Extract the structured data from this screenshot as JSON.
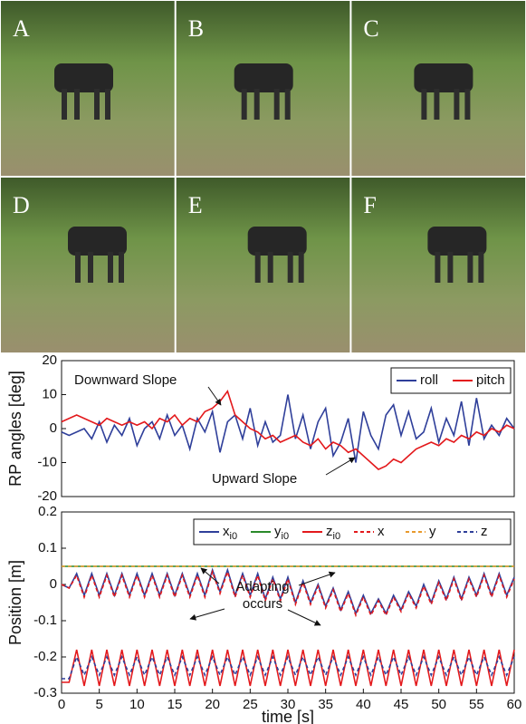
{
  "photos": {
    "labels": [
      "A",
      "B",
      "C",
      "D",
      "E",
      "F"
    ]
  },
  "chart_data": [
    {
      "type": "line",
      "ylabel": "RP angles [deg]",
      "annotations": [
        "Downward Slope",
        "Upward Slope"
      ],
      "x": [
        0,
        1,
        2,
        3,
        4,
        5,
        6,
        7,
        8,
        9,
        10,
        11,
        12,
        13,
        14,
        15,
        16,
        17,
        18,
        19,
        20,
        21,
        22,
        23,
        24,
        25,
        26,
        27,
        28,
        29,
        30,
        31,
        32,
        33,
        34,
        35,
        36,
        37,
        38,
        39,
        40,
        41,
        42,
        43,
        44,
        45,
        46,
        47,
        48,
        49,
        50,
        51,
        52,
        53,
        54,
        55,
        56,
        57,
        58,
        59,
        60
      ],
      "xlim": [
        0,
        60
      ],
      "ylim": [
        -20,
        20
      ],
      "yticks": [
        -20,
        -10,
        0,
        10,
        20
      ],
      "legend": "upper right",
      "series": [
        {
          "name": "roll",
          "color": "#2f3f9a",
          "values": [
            -1,
            -2,
            -1,
            0,
            -3,
            2,
            -4,
            1,
            -2,
            3,
            -5,
            0,
            2,
            -3,
            4,
            -2,
            1,
            -6,
            3,
            -1,
            5,
            -7,
            2,
            4,
            -3,
            6,
            -5,
            2,
            -4,
            -2,
            10,
            -3,
            4,
            -6,
            2,
            6,
            -8,
            -4,
            3,
            -10,
            5,
            -2,
            -6,
            4,
            7,
            -2,
            5,
            -3,
            -1,
            6,
            -4,
            3,
            -2,
            8,
            -5,
            9,
            -3,
            1,
            -2,
            3,
            0
          ]
        },
        {
          "name": "pitch",
          "color": "#e3191c",
          "values": [
            2,
            3,
            4,
            3,
            2,
            1,
            3,
            2,
            1,
            2,
            1,
            2,
            0,
            3,
            2,
            4,
            1,
            3,
            2,
            5,
            6,
            8,
            11,
            4,
            2,
            0,
            -1,
            -3,
            -2,
            -4,
            -3,
            -2,
            -4,
            -5,
            -3,
            -6,
            -4,
            -5,
            -7,
            -6,
            -8,
            -10,
            -12,
            -11,
            -9,
            -10,
            -8,
            -6,
            -5,
            -4,
            -5,
            -3,
            -4,
            -2,
            -3,
            -1,
            -2,
            0,
            -1,
            1,
            0
          ]
        }
      ]
    },
    {
      "type": "line",
      "ylabel": "Position [m]",
      "xlabel": "time [s]",
      "annotations": [
        "Adapting",
        "occurs"
      ],
      "x": [
        0,
        1,
        2,
        3,
        4,
        5,
        6,
        7,
        8,
        9,
        10,
        11,
        12,
        13,
        14,
        15,
        16,
        17,
        18,
        19,
        20,
        21,
        22,
        23,
        24,
        25,
        26,
        27,
        28,
        29,
        30,
        31,
        32,
        33,
        34,
        35,
        36,
        37,
        38,
        39,
        40,
        41,
        42,
        43,
        44,
        45,
        46,
        47,
        48,
        49,
        50,
        51,
        52,
        53,
        54,
        55,
        56,
        57,
        58,
        59,
        60
      ],
      "xlim": [
        0,
        60
      ],
      "xticks": [
        0,
        5,
        10,
        15,
        20,
        25,
        30,
        35,
        40,
        45,
        50,
        55,
        60
      ],
      "ylim": [
        -0.3,
        0.2
      ],
      "yticks": [
        -0.3,
        -0.2,
        -0.1,
        0,
        0.1,
        0.2
      ],
      "legend": "upper right",
      "series": [
        {
          "name": "x",
          "sub": "i0",
          "color": "#2f3f9a",
          "dashed": false,
          "values": [
            0,
            -0.01,
            0.03,
            -0.03,
            0.03,
            -0.03,
            0.03,
            -0.03,
            0.03,
            -0.03,
            0.03,
            -0.03,
            0.03,
            -0.03,
            0.03,
            -0.03,
            0.03,
            -0.03,
            0.03,
            -0.03,
            0.04,
            -0.02,
            0.04,
            -0.03,
            0.03,
            -0.03,
            0.03,
            -0.04,
            0.02,
            -0.04,
            0.02,
            -0.05,
            0.01,
            -0.05,
            0,
            -0.06,
            -0.01,
            -0.07,
            -0.02,
            -0.08,
            -0.03,
            -0.08,
            -0.04,
            -0.08,
            -0.03,
            -0.07,
            -0.02,
            -0.06,
            0,
            -0.05,
            0.01,
            -0.04,
            0.02,
            -0.04,
            0.02,
            -0.03,
            0.03,
            -0.03,
            0.03,
            -0.03,
            0.02
          ]
        },
        {
          "name": "y",
          "sub": "i0",
          "color": "#2a8a2a",
          "dashed": false,
          "values": [
            0.05,
            0.05,
            0.05,
            0.05,
            0.05,
            0.05,
            0.05,
            0.05,
            0.05,
            0.05,
            0.05,
            0.05,
            0.05,
            0.05,
            0.05,
            0.05,
            0.05,
            0.05,
            0.05,
            0.05,
            0.05,
            0.05,
            0.05,
            0.05,
            0.05,
            0.05,
            0.05,
            0.05,
            0.05,
            0.05,
            0.05,
            0.05,
            0.05,
            0.05,
            0.05,
            0.05,
            0.05,
            0.05,
            0.05,
            0.05,
            0.05,
            0.05,
            0.05,
            0.05,
            0.05,
            0.05,
            0.05,
            0.05,
            0.05,
            0.05,
            0.05,
            0.05,
            0.05,
            0.05,
            0.05,
            0.05,
            0.05,
            0.05,
            0.05,
            0.05,
            0.05
          ]
        },
        {
          "name": "z",
          "sub": "i0",
          "color": "#e3191c",
          "dashed": false,
          "values": [
            -0.27,
            -0.27,
            -0.18,
            -0.28,
            -0.18,
            -0.28,
            -0.18,
            -0.28,
            -0.18,
            -0.28,
            -0.18,
            -0.28,
            -0.18,
            -0.28,
            -0.18,
            -0.28,
            -0.18,
            -0.28,
            -0.18,
            -0.28,
            -0.18,
            -0.28,
            -0.18,
            -0.28,
            -0.18,
            -0.28,
            -0.18,
            -0.28,
            -0.18,
            -0.28,
            -0.18,
            -0.28,
            -0.18,
            -0.28,
            -0.18,
            -0.28,
            -0.18,
            -0.28,
            -0.18,
            -0.28,
            -0.18,
            -0.28,
            -0.18,
            -0.28,
            -0.18,
            -0.28,
            -0.18,
            -0.28,
            -0.18,
            -0.28,
            -0.18,
            -0.28,
            -0.18,
            -0.28,
            -0.18,
            -0.28,
            -0.18,
            -0.28,
            -0.18,
            -0.28,
            -0.18
          ]
        },
        {
          "name": "x",
          "color": "#e3191c",
          "dashed": true,
          "values": [
            0,
            -0.01,
            0.025,
            -0.035,
            0.025,
            -0.035,
            0.025,
            -0.035,
            0.025,
            -0.035,
            0.025,
            -0.035,
            0.025,
            -0.035,
            0.025,
            -0.035,
            0.025,
            -0.035,
            0.025,
            -0.035,
            0.035,
            -0.025,
            0.035,
            -0.035,
            0.025,
            -0.035,
            0.025,
            -0.045,
            0.015,
            -0.045,
            0.015,
            -0.055,
            0.005,
            -0.055,
            -0.005,
            -0.065,
            -0.015,
            -0.075,
            -0.025,
            -0.085,
            -0.035,
            -0.085,
            -0.045,
            -0.085,
            -0.035,
            -0.075,
            -0.025,
            -0.065,
            -0.005,
            -0.055,
            0.005,
            -0.045,
            0.015,
            -0.045,
            0.015,
            -0.035,
            0.025,
            -0.035,
            0.025,
            -0.035,
            0.015
          ]
        },
        {
          "name": "y",
          "color": "#e89a2c",
          "dashed": true,
          "values": [
            0.05,
            0.05,
            0.05,
            0.05,
            0.05,
            0.05,
            0.05,
            0.05,
            0.05,
            0.05,
            0.05,
            0.05,
            0.05,
            0.05,
            0.05,
            0.05,
            0.05,
            0.05,
            0.05,
            0.05,
            0.05,
            0.05,
            0.05,
            0.05,
            0.05,
            0.05,
            0.05,
            0.05,
            0.05,
            0.05,
            0.05,
            0.05,
            0.05,
            0.05,
            0.05,
            0.05,
            0.05,
            0.05,
            0.05,
            0.05,
            0.05,
            0.05,
            0.05,
            0.05,
            0.05,
            0.05,
            0.05,
            0.05,
            0.05,
            0.05,
            0.05,
            0.05,
            0.05,
            0.05,
            0.05,
            0.05,
            0.05,
            0.05,
            0.05,
            0.05,
            0.05
          ]
        },
        {
          "name": "z",
          "color": "#2f3f9a",
          "dashed": true,
          "values": [
            -0.26,
            -0.26,
            -0.2,
            -0.25,
            -0.2,
            -0.25,
            -0.2,
            -0.25,
            -0.2,
            -0.25,
            -0.2,
            -0.25,
            -0.2,
            -0.25,
            -0.2,
            -0.25,
            -0.2,
            -0.25,
            -0.2,
            -0.25,
            -0.2,
            -0.25,
            -0.2,
            -0.25,
            -0.2,
            -0.25,
            -0.2,
            -0.25,
            -0.2,
            -0.25,
            -0.2,
            -0.25,
            -0.2,
            -0.25,
            -0.2,
            -0.25,
            -0.2,
            -0.25,
            -0.2,
            -0.25,
            -0.2,
            -0.25,
            -0.2,
            -0.25,
            -0.2,
            -0.25,
            -0.2,
            -0.25,
            -0.2,
            -0.25,
            -0.2,
            -0.25,
            -0.2,
            -0.25,
            -0.2,
            -0.25,
            -0.2,
            -0.25,
            -0.2,
            -0.25,
            -0.2
          ]
        }
      ]
    }
  ]
}
